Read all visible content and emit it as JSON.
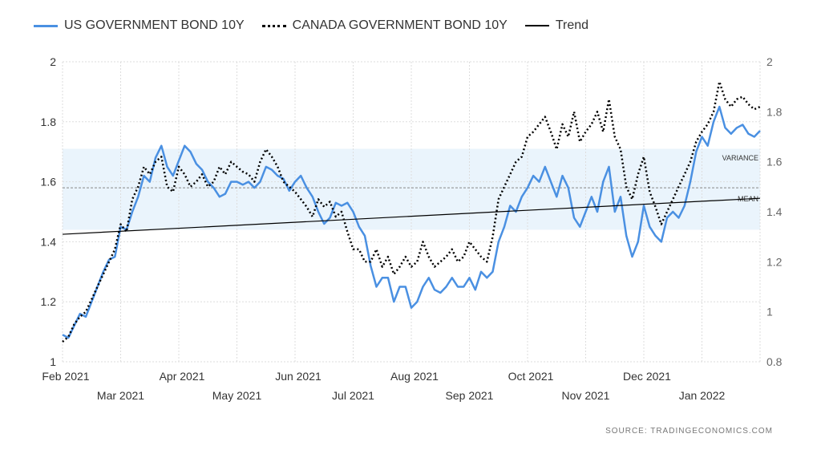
{
  "legend": {
    "us": "US GOVERNMENT BOND 10Y",
    "canada": "CANADA GOVERNMENT BOND 10Y",
    "trend": "Trend"
  },
  "source": "SOURCE:  TRADINGECONOMICS.COM",
  "colors": {
    "us": "#4a90e2",
    "canada": "#000000",
    "trend": "#000000",
    "band": "#eaf4fc"
  },
  "chart_data": {
    "type": "line",
    "x_tick_labels_top_row": [
      "Feb 2021",
      "Apr 2021",
      "Jun 2021",
      "Aug 2021",
      "Oct 2021",
      "Dec 2021"
    ],
    "x_tick_labels_bottom_row": [
      "Mar 2021",
      "May 2021",
      "Jul 2021",
      "Sep 2021",
      "Nov 2021",
      "Jan 2022"
    ],
    "x_month_index_range": [
      0,
      12
    ],
    "left_axis": {
      "range": [
        1,
        2
      ],
      "ticks": [
        "1",
        "1.2",
        "1.4",
        "1.6",
        "1.8",
        "2"
      ]
    },
    "right_axis": {
      "range": [
        0.8,
        2
      ],
      "ticks": [
        "0.8",
        "1",
        "1.2",
        "1.4",
        "1.6",
        "1.8",
        "2"
      ]
    },
    "band": {
      "from": 1.44,
      "to": 1.71,
      "label": "VARIANCE"
    },
    "mean": {
      "value": 1.58,
      "label": "MEAN"
    },
    "trend": {
      "start": 1.425,
      "end": 1.545
    },
    "grid": true,
    "legend_position": "top-left",
    "series": [
      {
        "name": "US GOVERNMENT BOND 10Y",
        "axis": "left",
        "x": [
          0,
          0.1,
          0.2,
          0.3,
          0.4,
          0.5,
          0.6,
          0.7,
          0.8,
          0.9,
          1.0,
          1.1,
          1.2,
          1.3,
          1.4,
          1.5,
          1.6,
          1.7,
          1.8,
          1.9,
          2.0,
          2.1,
          2.2,
          2.3,
          2.4,
          2.5,
          2.6,
          2.7,
          2.8,
          2.9,
          3.0,
          3.1,
          3.2,
          3.3,
          3.4,
          3.5,
          3.6,
          3.7,
          3.8,
          3.9,
          4.0,
          4.1,
          4.2,
          4.3,
          4.4,
          4.5,
          4.6,
          4.7,
          4.8,
          4.9,
          5.0,
          5.1,
          5.2,
          5.3,
          5.4,
          5.5,
          5.6,
          5.7,
          5.8,
          5.9,
          6.0,
          6.1,
          6.2,
          6.3,
          6.4,
          6.5,
          6.6,
          6.7,
          6.8,
          6.9,
          7.0,
          7.1,
          7.2,
          7.3,
          7.4,
          7.5,
          7.6,
          7.7,
          7.8,
          7.9,
          8.0,
          8.1,
          8.2,
          8.3,
          8.4,
          8.5,
          8.6,
          8.7,
          8.8,
          8.9,
          9.0,
          9.1,
          9.2,
          9.3,
          9.4,
          9.5,
          9.6,
          9.7,
          9.8,
          9.9,
          10.0,
          10.1,
          10.2,
          10.3,
          10.4,
          10.5,
          10.6,
          10.7,
          10.8,
          10.9,
          11.0,
          11.1,
          11.2,
          11.3,
          11.4,
          11.5,
          11.6,
          11.7,
          11.8,
          11.9,
          12.0
        ],
        "values": [
          1.09,
          1.08,
          1.12,
          1.16,
          1.15,
          1.2,
          1.25,
          1.3,
          1.34,
          1.35,
          1.45,
          1.44,
          1.5,
          1.55,
          1.62,
          1.6,
          1.68,
          1.72,
          1.65,
          1.62,
          1.67,
          1.72,
          1.7,
          1.66,
          1.64,
          1.6,
          1.58,
          1.55,
          1.56,
          1.6,
          1.6,
          1.59,
          1.6,
          1.58,
          1.6,
          1.65,
          1.64,
          1.62,
          1.61,
          1.57,
          1.6,
          1.62,
          1.58,
          1.55,
          1.5,
          1.46,
          1.48,
          1.53,
          1.52,
          1.53,
          1.5,
          1.45,
          1.42,
          1.32,
          1.25,
          1.28,
          1.28,
          1.2,
          1.25,
          1.25,
          1.18,
          1.2,
          1.25,
          1.28,
          1.24,
          1.23,
          1.25,
          1.28,
          1.25,
          1.25,
          1.28,
          1.24,
          1.3,
          1.28,
          1.3,
          1.4,
          1.45,
          1.52,
          1.5,
          1.55,
          1.58,
          1.62,
          1.6,
          1.65,
          1.6,
          1.55,
          1.62,
          1.58,
          1.48,
          1.45,
          1.5,
          1.55,
          1.5,
          1.6,
          1.65,
          1.5,
          1.55,
          1.42,
          1.35,
          1.4,
          1.52,
          1.45,
          1.42,
          1.4,
          1.48,
          1.5,
          1.48,
          1.52,
          1.6,
          1.7,
          1.75,
          1.72,
          1.8,
          1.85,
          1.78,
          1.76,
          1.78,
          1.79,
          1.76,
          1.75,
          1.77
        ]
      },
      {
        "name": "CANADA GOVERNMENT BOND 10Y",
        "axis": "right",
        "x": [
          0,
          0.1,
          0.2,
          0.3,
          0.4,
          0.5,
          0.6,
          0.7,
          0.8,
          0.9,
          1.0,
          1.1,
          1.2,
          1.3,
          1.4,
          1.5,
          1.6,
          1.7,
          1.8,
          1.9,
          2.0,
          2.1,
          2.2,
          2.3,
          2.4,
          2.5,
          2.6,
          2.7,
          2.8,
          2.9,
          3.0,
          3.1,
          3.2,
          3.3,
          3.4,
          3.5,
          3.6,
          3.7,
          3.8,
          3.9,
          4.0,
          4.1,
          4.2,
          4.3,
          4.4,
          4.5,
          4.6,
          4.7,
          4.8,
          4.9,
          5.0,
          5.1,
          5.2,
          5.3,
          5.4,
          5.5,
          5.6,
          5.7,
          5.8,
          5.9,
          6.0,
          6.1,
          6.2,
          6.3,
          6.4,
          6.5,
          6.6,
          6.7,
          6.8,
          6.9,
          7.0,
          7.1,
          7.2,
          7.3,
          7.4,
          7.5,
          7.6,
          7.7,
          7.8,
          7.9,
          8.0,
          8.1,
          8.2,
          8.3,
          8.4,
          8.5,
          8.6,
          8.7,
          8.8,
          8.9,
          9.0,
          9.1,
          9.2,
          9.3,
          9.4,
          9.5,
          9.6,
          9.7,
          9.8,
          9.9,
          10.0,
          10.1,
          10.2,
          10.3,
          10.4,
          10.5,
          10.6,
          10.7,
          10.8,
          10.9,
          11.0,
          11.1,
          11.2,
          11.3,
          11.4,
          11.5,
          11.6,
          11.7,
          11.8,
          11.9,
          12.0
        ],
        "values": [
          0.88,
          0.9,
          0.95,
          0.98,
          1.0,
          1.05,
          1.1,
          1.15,
          1.2,
          1.25,
          1.35,
          1.32,
          1.45,
          1.5,
          1.58,
          1.55,
          1.6,
          1.62,
          1.5,
          1.48,
          1.58,
          1.55,
          1.5,
          1.52,
          1.55,
          1.5,
          1.52,
          1.58,
          1.55,
          1.6,
          1.58,
          1.56,
          1.55,
          1.52,
          1.6,
          1.65,
          1.62,
          1.58,
          1.52,
          1.5,
          1.48,
          1.45,
          1.42,
          1.38,
          1.45,
          1.42,
          1.44,
          1.38,
          1.4,
          1.32,
          1.25,
          1.25,
          1.2,
          1.2,
          1.25,
          1.18,
          1.22,
          1.15,
          1.18,
          1.22,
          1.18,
          1.2,
          1.28,
          1.22,
          1.18,
          1.2,
          1.22,
          1.25,
          1.2,
          1.22,
          1.28,
          1.25,
          1.22,
          1.2,
          1.3,
          1.45,
          1.5,
          1.55,
          1.6,
          1.62,
          1.7,
          1.72,
          1.75,
          1.78,
          1.72,
          1.65,
          1.75,
          1.7,
          1.8,
          1.68,
          1.72,
          1.75,
          1.8,
          1.72,
          1.85,
          1.7,
          1.65,
          1.5,
          1.45,
          1.55,
          1.62,
          1.48,
          1.42,
          1.35,
          1.4,
          1.45,
          1.5,
          1.55,
          1.6,
          1.68,
          1.72,
          1.75,
          1.8,
          1.92,
          1.85,
          1.82,
          1.85,
          1.86,
          1.83,
          1.81,
          1.82
        ]
      }
    ]
  }
}
